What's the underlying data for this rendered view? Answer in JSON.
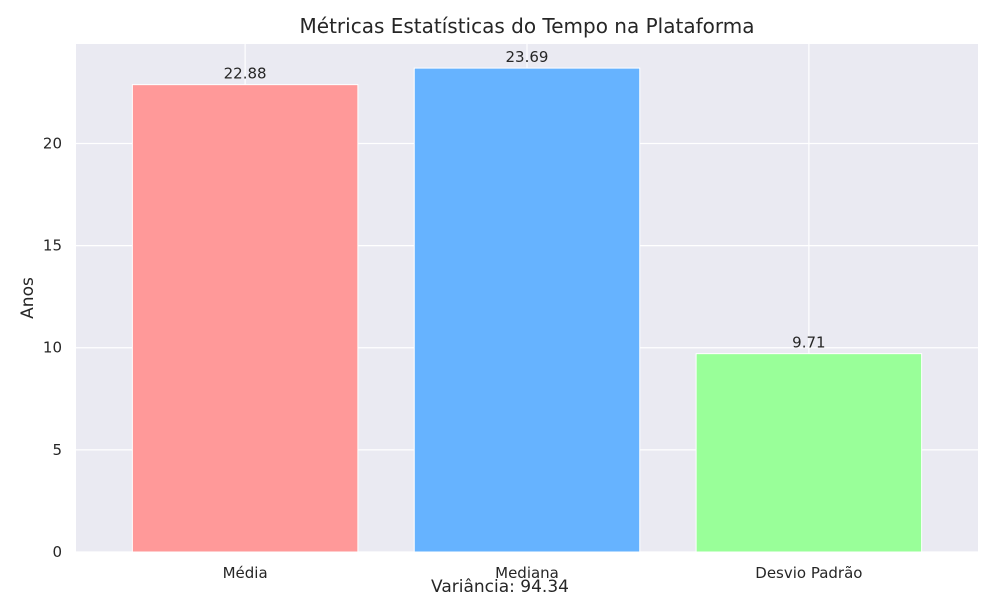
{
  "chart_data": {
    "type": "bar",
    "title": "Métricas Estatísticas do Tempo na Plataforma",
    "xlabel": "",
    "ylabel": "Anos",
    "categories": [
      "Média",
      "Mediana",
      "Desvio Padrão"
    ],
    "values": [
      22.88,
      23.69,
      9.71
    ],
    "value_labels": [
      "22.88",
      "23.69",
      "9.71"
    ],
    "colors": [
      "#ff9999",
      "#66b3ff",
      "#99ff99"
    ],
    "ylim": [
      0,
      24.87
    ],
    "yticks": [
      0,
      5,
      10,
      15,
      20
    ],
    "grid": true,
    "background": "#eaeaf2",
    "annotation": "Variância: 94.34"
  }
}
